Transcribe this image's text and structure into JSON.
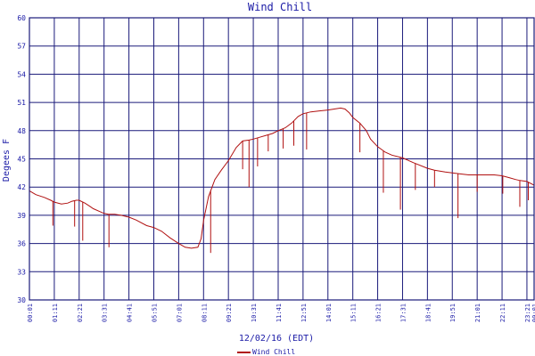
{
  "chart_data": {
    "type": "line",
    "title": "Wind Chill",
    "xlabel": "12/02/16 (EDT)",
    "ylabel": "Degees F",
    "ylim": [
      30,
      60
    ],
    "yticks": [
      30,
      33,
      36,
      39,
      42,
      45,
      48,
      51,
      54,
      57,
      60
    ],
    "xlim": [
      0,
      23.67
    ],
    "xticks": [
      {
        "label": "00:01",
        "value": 0.0
      },
      {
        "label": "01:11",
        "value": 1.167
      },
      {
        "label": "02:21",
        "value": 2.333
      },
      {
        "label": "03:31",
        "value": 3.5
      },
      {
        "label": "04:41",
        "value": 4.667
      },
      {
        "label": "05:51",
        "value": 5.833
      },
      {
        "label": "07:01",
        "value": 7.0
      },
      {
        "label": "08:11",
        "value": 8.167
      },
      {
        "label": "09:21",
        "value": 9.333
      },
      {
        "label": "10:31",
        "value": 10.5
      },
      {
        "label": "11:41",
        "value": 11.667
      },
      {
        "label": "12:51",
        "value": 12.833
      },
      {
        "label": "14:01",
        "value": 14.0
      },
      {
        "label": "15:11",
        "value": 15.167
      },
      {
        "label": "16:21",
        "value": 16.333
      },
      {
        "label": "17:31",
        "value": 17.5
      },
      {
        "label": "18:41",
        "value": 18.667
      },
      {
        "label": "19:51",
        "value": 19.833
      },
      {
        "label": "21:01",
        "value": 21.0
      },
      {
        "label": "22:11",
        "value": 22.167
      },
      {
        "label": "23:21",
        "value": 23.333
      },
      {
        "label": "00:01",
        "value": 23.67
      }
    ],
    "grid": true,
    "legend": "bottom-left",
    "series": [
      {
        "name": "Wind Chill",
        "color": "#b01010",
        "x": [
          0.0,
          0.3,
          0.7,
          1.0,
          1.17,
          1.5,
          1.8,
          2.0,
          2.2,
          2.33,
          2.6,
          2.8,
          3.0,
          3.3,
          3.5,
          3.7,
          4.0,
          4.3,
          4.67,
          5.0,
          5.5,
          5.83,
          6.2,
          6.6,
          7.0,
          7.3,
          7.6,
          7.9,
          8.05,
          8.17,
          8.4,
          8.7,
          9.0,
          9.33,
          9.7,
          10.0,
          10.3,
          10.5,
          10.8,
          11.1,
          11.4,
          11.67,
          12.0,
          12.3,
          12.6,
          12.83,
          13.2,
          13.6,
          14.0,
          14.3,
          14.6,
          14.8,
          15.0,
          15.17,
          15.5,
          15.8,
          16.0,
          16.33,
          16.7,
          17.0,
          17.5,
          18.0,
          18.67,
          19.0,
          19.5,
          19.83,
          20.2,
          20.6,
          21.0,
          21.4,
          21.8,
          22.17,
          22.5,
          22.8,
          23.0,
          23.33,
          23.67
        ],
        "y": [
          41.6,
          41.2,
          40.9,
          40.6,
          40.4,
          40.2,
          40.3,
          40.5,
          40.6,
          40.6,
          40.3,
          40.0,
          39.7,
          39.4,
          39.2,
          39.1,
          39.1,
          39.0,
          38.8,
          38.5,
          37.9,
          37.7,
          37.3,
          36.6,
          36.0,
          35.6,
          35.5,
          35.6,
          36.5,
          38.5,
          41.0,
          42.8,
          43.8,
          44.8,
          46.2,
          46.9,
          47.0,
          47.1,
          47.3,
          47.5,
          47.7,
          48.0,
          48.3,
          48.8,
          49.5,
          49.8,
          50.0,
          50.1,
          50.2,
          50.3,
          50.4,
          50.3,
          49.9,
          49.4,
          48.8,
          48.0,
          47.1,
          46.3,
          45.7,
          45.4,
          45.1,
          44.6,
          44.0,
          43.8,
          43.6,
          43.5,
          43.4,
          43.3,
          43.3,
          43.3,
          43.3,
          43.2,
          43.0,
          42.8,
          42.7,
          42.6,
          42.2
        ],
        "dips": [
          [
            1.1,
            37.9
          ],
          [
            2.12,
            37.8
          ],
          [
            2.5,
            36.3
          ],
          [
            3.73,
            35.6
          ],
          [
            8.5,
            35.0
          ],
          [
            10.0,
            43.9
          ],
          [
            10.3,
            42.0
          ],
          [
            10.7,
            44.2
          ],
          [
            11.2,
            45.8
          ],
          [
            11.9,
            46.1
          ],
          [
            12.4,
            46.4
          ],
          [
            13.0,
            46.0
          ],
          [
            15.5,
            45.7
          ],
          [
            16.6,
            41.4
          ],
          [
            17.4,
            39.6
          ],
          [
            18.1,
            41.7
          ],
          [
            19.0,
            42.0
          ],
          [
            20.1,
            38.7
          ],
          [
            21.0,
            41.5
          ],
          [
            22.2,
            41.3
          ],
          [
            23.0,
            39.9
          ],
          [
            23.4,
            40.6
          ]
        ]
      }
    ]
  }
}
